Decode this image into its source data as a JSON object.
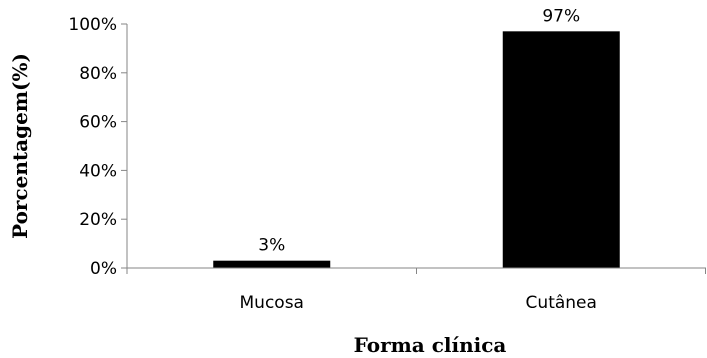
{
  "chart_data": {
    "type": "bar",
    "categories": [
      "Mucosa",
      "Cutânea"
    ],
    "values": [
      3,
      97
    ],
    "data_labels": [
      "3%",
      "97%"
    ],
    "title": "",
    "xlabel": "Forma clínica",
    "ylabel": "Porcentagem(%)",
    "ylim": [
      0,
      100
    ],
    "yticks": [
      0,
      20,
      40,
      60,
      80,
      100
    ],
    "ytick_labels": [
      "0%",
      "20%",
      "40%",
      "60%",
      "80%",
      "100%"
    ],
    "grid": false,
    "legend": "none",
    "bar_color": "#000000",
    "axis_color": "#868686"
  }
}
